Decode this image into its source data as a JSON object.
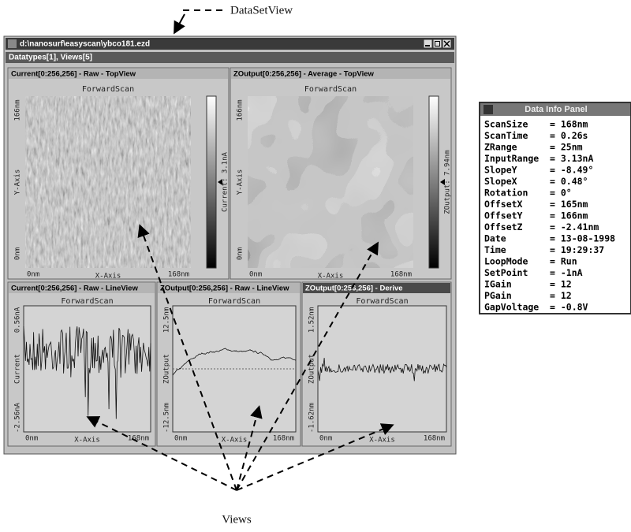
{
  "annotations": {
    "top": "DataSetView",
    "bottom": "Views"
  },
  "window": {
    "title": "d:\\nanosurf\\easyscan\\ybco181.ezd",
    "subtitle": "Datatypes[1], Views[5]",
    "views": [
      {
        "title": "Current[0:256,256] - Raw - TopView",
        "kind": "top",
        "active": false,
        "scan": "ForwardScan",
        "y_axis": "Y-Axis",
        "y_max": "166nm",
        "y_min": "0nm",
        "x_axis": "X-Axis",
        "x_min": "0nm",
        "x_max": "168nm",
        "colorbar": "Current: 3.1nA"
      },
      {
        "title": "ZOutput[0:256,256] - Average - TopView",
        "kind": "top",
        "active": false,
        "scan": "ForwardScan",
        "y_axis": "Y-Axis",
        "y_max": "166nm",
        "y_min": "0nm",
        "x_axis": "X-Axis",
        "x_min": "0nm",
        "x_max": "168nm",
        "colorbar": "ZOutput: 7.94nm"
      },
      {
        "title": "Current[0:256,256] - Raw - LineView",
        "kind": "line",
        "active": false,
        "scan": "ForwardScan",
        "y_axis": "Current",
        "y_max": "0.56nA",
        "y_min": "-2.56nA",
        "x_axis": "X-Axis",
        "x_min": "0nm",
        "x_max": "168nm"
      },
      {
        "title": "ZOutput[0:256,256] - Raw - LineView",
        "kind": "line",
        "active": false,
        "scan": "ForwardScan",
        "y_axis": "ZOutput",
        "y_max": "12.5nm",
        "y_min": "-12.5nm",
        "x_axis": "X-Axis",
        "x_min": "0nm",
        "x_max": "168nm"
      },
      {
        "title": "ZOutput[0:256,256] - Derive",
        "kind": "line",
        "active": true,
        "scan": "ForwardScan",
        "y_axis": "ZOutput",
        "y_max": "1.52nm",
        "y_min": "-1.62nm",
        "x_axis": "X-Axis",
        "x_min": "0nm",
        "x_max": "168nm"
      }
    ]
  },
  "info_panel": {
    "title": "Data Info Panel",
    "rows": [
      [
        "ScanSize",
        "= 168nm"
      ],
      [
        "ScanTime",
        "= 0.26s"
      ],
      [
        "ZRange",
        "= 25nm"
      ],
      [
        "InputRange",
        "= 3.13nA"
      ],
      [
        "SlopeY",
        "= -8.49°"
      ],
      [
        "SlopeX",
        "= 0.48°"
      ],
      [
        "Rotation",
        "= 0°"
      ],
      [
        "OffsetX",
        "= 165nm"
      ],
      [
        "OffsetY",
        "= 166nm"
      ],
      [
        "OffsetZ",
        "= -2.41nm"
      ],
      [
        "Date",
        "= 13-08-1998"
      ],
      [
        "Time",
        "= 19:29:37"
      ],
      [
        "LoopMode",
        "= Run"
      ],
      [
        "SetPoint",
        "= -1nA"
      ],
      [
        "IGain",
        "= 12"
      ],
      [
        "PGain",
        "= 12"
      ],
      [
        "GapVoltage",
        "= -0.8V"
      ]
    ]
  }
}
